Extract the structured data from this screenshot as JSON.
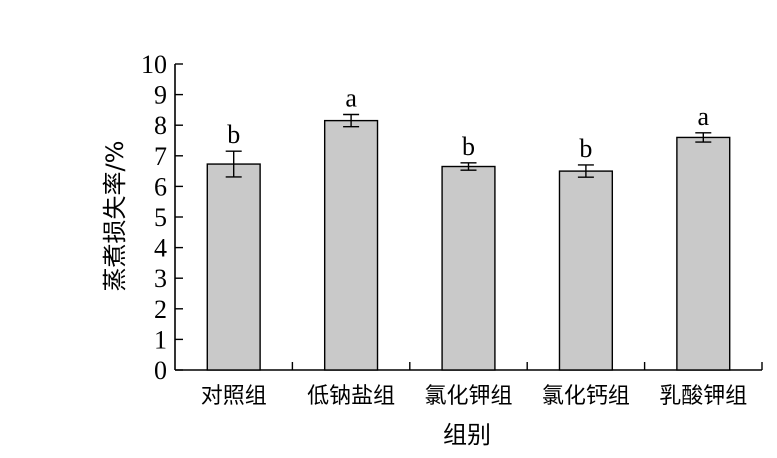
{
  "chart_data": {
    "type": "bar",
    "title": "",
    "xlabel": "组别",
    "ylabel": "蒸煮损失率/%",
    "ylim": [
      0,
      10
    ],
    "yticks": [
      0,
      1,
      2,
      3,
      4,
      5,
      6,
      7,
      8,
      9,
      10
    ],
    "categories": [
      "对照组",
      "低钠盐组",
      "氯化钾组",
      "氯化钙组",
      "乳酸钾组"
    ],
    "values": [
      6.73,
      8.15,
      6.65,
      6.5,
      7.6
    ],
    "errors": [
      0.42,
      0.2,
      0.12,
      0.2,
      0.15
    ],
    "significance": [
      "b",
      "a",
      "b",
      "b",
      "a"
    ],
    "bar_color": "#c9c9c9",
    "grid": false
  }
}
